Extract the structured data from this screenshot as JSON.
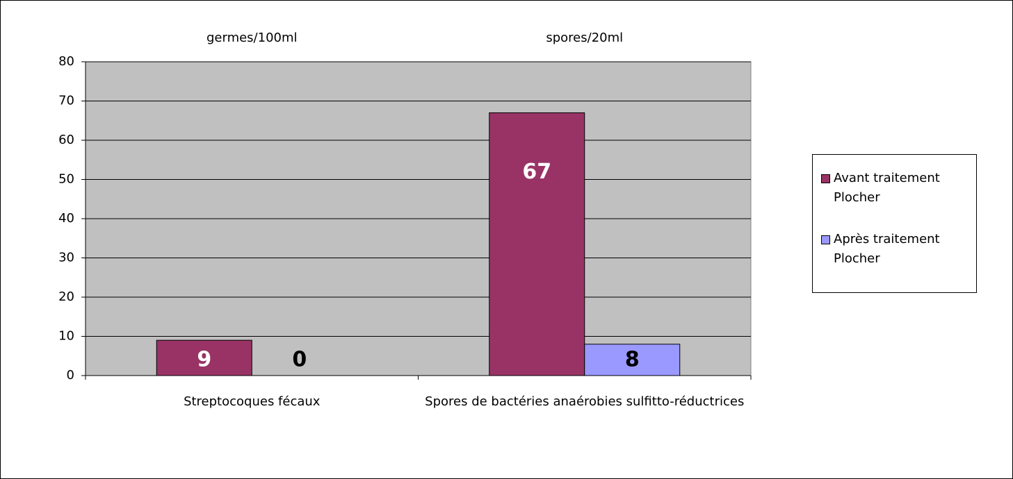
{
  "chart_data": {
    "type": "bar",
    "annotations": [
      "germes/100ml",
      "spores/20ml"
    ],
    "categories": [
      "Streptocoques fécaux",
      "Spores de bactéries anaérobies sulfitto-réductrices"
    ],
    "series": [
      {
        "name": "Avant traitement Plocher",
        "color": "#993366",
        "label_color": "#ffffff",
        "values": [
          9,
          67
        ]
      },
      {
        "name": "Après traitement Plocher",
        "color": "#9999ff",
        "label_color": "#000000",
        "values": [
          0,
          8
        ]
      }
    ],
    "ylim": [
      0,
      80
    ],
    "yticks": [
      0,
      10,
      20,
      30,
      40,
      50,
      60,
      70,
      80
    ],
    "grid": true,
    "legend": "right",
    "plot_background": "#c0c0c0"
  }
}
